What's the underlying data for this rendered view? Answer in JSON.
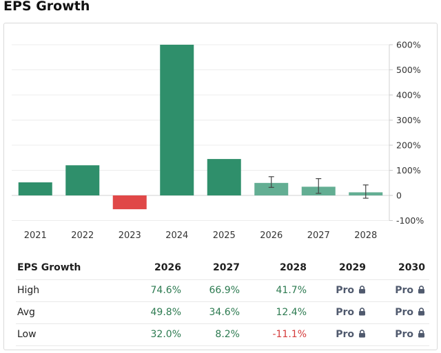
{
  "title": "EPS Growth",
  "colors": {
    "actual": "#2f8f6b",
    "negative": "#e04848",
    "forecast": "#63ae93",
    "positive_text": "#2c7a50",
    "negative_text": "#d43a3a"
  },
  "chart_data": {
    "type": "bar",
    "categories": [
      "2021",
      "2022",
      "2023",
      "2024",
      "2025",
      "2026",
      "2027",
      "2028"
    ],
    "values": [
      52,
      120,
      -55,
      600,
      145,
      49.8,
      34.6,
      12.4
    ],
    "forecast_from_index": 5,
    "error_high": [
      null,
      null,
      null,
      null,
      null,
      74.6,
      66.9,
      41.7
    ],
    "error_low": [
      null,
      null,
      null,
      null,
      null,
      32.0,
      8.2,
      -11.1
    ],
    "yticks": [
      600,
      500,
      400,
      300,
      200,
      100,
      0,
      -100
    ],
    "ytick_labels": [
      "600%",
      "500%",
      "400%",
      "300%",
      "200%",
      "100%",
      "0",
      "-100%"
    ],
    "ylim": [
      -100,
      600
    ],
    "grid": true,
    "yaxis_position": "right"
  },
  "table": {
    "header": "EPS Growth",
    "years": [
      "2026",
      "2027",
      "2028",
      "2029",
      "2030"
    ],
    "rows": [
      {
        "label": "High",
        "values": [
          "74.6%",
          "66.9%",
          "41.7%"
        ],
        "locked": [
          "Pro",
          "Pro"
        ]
      },
      {
        "label": "Avg",
        "values": [
          "49.8%",
          "34.6%",
          "12.4%"
        ],
        "locked": [
          "Pro",
          "Pro"
        ]
      },
      {
        "label": "Low",
        "values": [
          "32.0%",
          "8.2%",
          "-11.1%"
        ],
        "locked": [
          "Pro",
          "Pro"
        ]
      }
    ],
    "lock_icon": "lock-icon"
  }
}
